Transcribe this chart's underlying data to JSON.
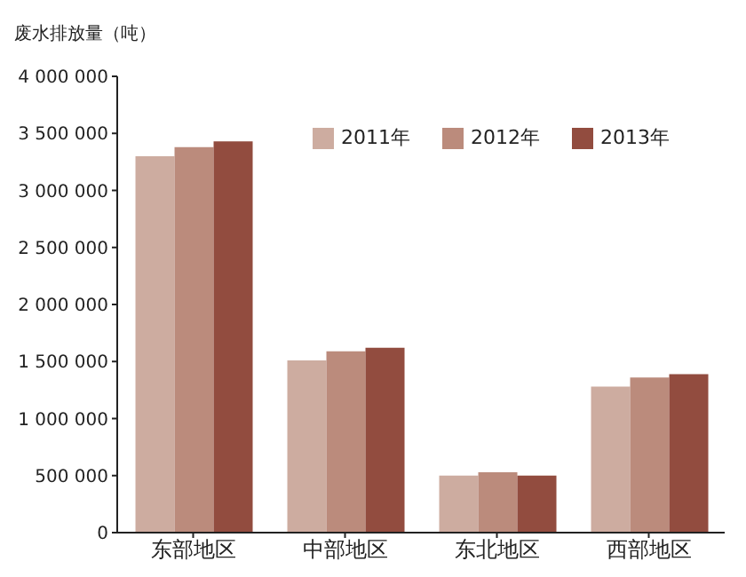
{
  "chart_data": {
    "type": "bar",
    "ylabel": "废水排放量（吨）",
    "categories": [
      "东部地区",
      "中部地区",
      "东北地区",
      "西部地区"
    ],
    "series": [
      {
        "name": "2011年",
        "color": "#cdaca0",
        "values": [
          3300000,
          1510000,
          500000,
          1280000
        ]
      },
      {
        "name": "2012年",
        "color": "#bb8b7c",
        "values": [
          3380000,
          1590000,
          530000,
          1360000
        ]
      },
      {
        "name": "2013年",
        "color": "#924c3f",
        "values": [
          3430000,
          1620000,
          500000,
          1390000
        ]
      }
    ],
    "ylim": [
      0,
      4000000
    ],
    "yticks": [
      {
        "value": 0,
        "label": "0"
      },
      {
        "value": 500000,
        "label": "500 000"
      },
      {
        "value": 1000000,
        "label": "1 000 000"
      },
      {
        "value": 1500000,
        "label": "1 500 000"
      },
      {
        "value": 2000000,
        "label": "2 000 000"
      },
      {
        "value": 2500000,
        "label": "2 500 000"
      },
      {
        "value": 3000000,
        "label": "3 000 000"
      },
      {
        "value": 3500000,
        "label": "3 500 000"
      },
      {
        "value": 4000000,
        "label": "4 000 000"
      }
    ],
    "grid": false,
    "legend": "top right"
  }
}
